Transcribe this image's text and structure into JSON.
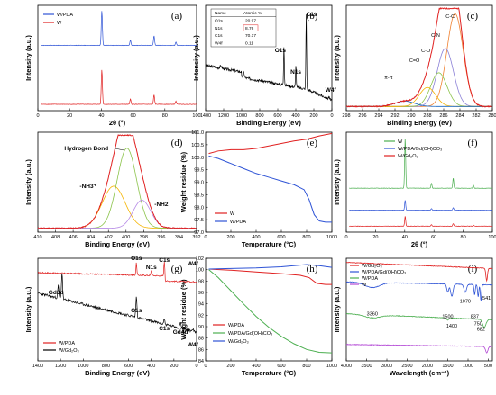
{
  "chart_data": [
    {
      "id": "a",
      "type": "line",
      "tag": "(a)",
      "xlabel": "2θ (°)",
      "ylabel": "Intensity (a.u.)",
      "xlim": [
        0,
        100
      ],
      "xticks": [
        0,
        20,
        40,
        60,
        80,
        100
      ],
      "yticks_hidden": true,
      "legend": {
        "placement": "top-left",
        "entries": [
          {
            "name": "W/PDA",
            "color": "#2f54d6"
          },
          {
            "name": "W",
            "color": "#e02020"
          }
        ]
      },
      "series": [
        {
          "name": "W/PDA",
          "color": "#2f54d6",
          "baseline": 0.62,
          "peaks": [
            [
              40.3,
              0.33
            ],
            [
              58.3,
              0.05
            ],
            [
              73.2,
              0.09
            ],
            [
              87.0,
              0.03
            ]
          ]
        },
        {
          "name": "W",
          "color": "#e02020",
          "baseline": 0.06,
          "peaks": [
            [
              40.3,
              0.33
            ],
            [
              58.3,
              0.05
            ],
            [
              73.2,
              0.09
            ],
            [
              87.0,
              0.03
            ]
          ]
        }
      ]
    },
    {
      "id": "b",
      "type": "line",
      "tag": "(b)",
      "xlabel": "Binding Energy (eV)",
      "ylabel": "Intensity (a.u.)",
      "xlim": [
        1400,
        0
      ],
      "xticks": [
        1400,
        1200,
        1000,
        800,
        600,
        400,
        200,
        0
      ],
      "yticks_hidden": true,
      "table": {
        "headers": [
          "Name",
          "Atomic %"
        ],
        "rows": [
          [
            "O1s",
            "20.97"
          ],
          [
            "N1s",
            "8.76"
          ],
          [
            "C1s",
            "70.17"
          ],
          [
            "W4f",
            "0.11"
          ]
        ],
        "highlight_row": 1
      },
      "peak_labels": [
        {
          "text": "O1s",
          "x": 531
        },
        {
          "text": "N1s",
          "x": 399
        },
        {
          "text": "C1s",
          "x": 284.6
        },
        {
          "text": "W4f",
          "x": 33
        }
      ],
      "color": "#000000"
    },
    {
      "id": "c",
      "type": "line",
      "tag": "(c)",
      "xlabel": "Binding Energy (eV)",
      "ylabel": "Intensity (a.u.)",
      "xlim": [
        298,
        280
      ],
      "xticks": [
        298,
        296,
        294,
        292,
        290,
        288,
        286,
        284,
        282,
        280
      ],
      "yticks_hidden": true,
      "components": [
        {
          "label": "C-C",
          "center": 284.6,
          "height": 0.88,
          "width": 1.0,
          "color": "#f08030"
        },
        {
          "label": "C-N",
          "center": 285.8,
          "height": 0.55,
          "width": 1.0,
          "color": "#8a7fd6"
        },
        {
          "label": "C-O",
          "center": 286.6,
          "height": 0.32,
          "width": 1.0,
          "color": "#8bc34a"
        },
        {
          "label": "C=O",
          "center": 288.0,
          "height": 0.18,
          "width": 1.0,
          "color": "#f5b400"
        },
        {
          "label": "π-π",
          "center": 290.8,
          "height": 0.05,
          "width": 1.2,
          "color": "#1565c0"
        }
      ],
      "envelope_color": "#e02020"
    },
    {
      "id": "d",
      "type": "line",
      "tag": "(d)",
      "xlabel": "Binding Energy (eV)",
      "ylabel": "Intensity (a.u.)",
      "xlim": [
        410,
        392
      ],
      "xticks": [
        410,
        408,
        406,
        404,
        402,
        400,
        398,
        396,
        394,
        392
      ],
      "yticks_hidden": true,
      "annotations": [
        "Hydrogen Bond",
        "-NH3⁺",
        "-NH2"
      ],
      "components": [
        {
          "label": "-NH3⁺",
          "center": 401.4,
          "height": 0.42,
          "width": 1.3,
          "color": "#f5b400"
        },
        {
          "label": "Hydrogen Bond",
          "center": 399.9,
          "height": 0.8,
          "width": 1.1,
          "color": "#8bc34a"
        },
        {
          "label": "-NH2",
          "center": 398.2,
          "height": 0.28,
          "width": 1.0,
          "color": "#b68ae6"
        }
      ],
      "envelope_color": "#e02020"
    },
    {
      "id": "e",
      "type": "line",
      "tag": "(e)",
      "xlabel": "Temperature (°C)",
      "ylabel": "Weight residue (%)",
      "xlim": [
        0,
        1000
      ],
      "ylim": [
        97.0,
        101.0
      ],
      "xticks": [
        0,
        200,
        400,
        600,
        800,
        1000
      ],
      "yticks": [
        97.0,
        97.5,
        98.0,
        98.5,
        99.0,
        99.5,
        100.0,
        100.5,
        101.0
      ],
      "legend": {
        "placement": "bottom-left",
        "entries": [
          {
            "name": "W",
            "color": "#e02020"
          },
          {
            "name": "W/PDA",
            "color": "#2f54d6"
          }
        ]
      },
      "series": [
        {
          "name": "W",
          "color": "#e02020",
          "x": [
            25,
            100,
            200,
            300,
            400,
            500,
            600,
            700,
            800,
            900,
            1000
          ],
          "y": [
            100.15,
            100.25,
            100.3,
            100.3,
            100.35,
            100.45,
            100.55,
            100.65,
            100.72,
            100.85,
            100.95
          ]
        },
        {
          "name": "W/PDA",
          "color": "#2f54d6",
          "x": [
            25,
            100,
            200,
            300,
            400,
            500,
            600,
            700,
            780,
            820,
            860,
            900,
            950,
            1000
          ],
          "y": [
            100.05,
            99.95,
            99.75,
            99.55,
            99.35,
            99.2,
            99.05,
            98.9,
            98.7,
            98.3,
            97.7,
            97.45,
            97.4,
            97.4
          ]
        }
      ]
    },
    {
      "id": "f",
      "type": "line",
      "tag": "(f)",
      "xlabel": "2θ (°)",
      "ylabel": "Intensity (a.u.)",
      "xlim": [
        0,
        100
      ],
      "xticks": [
        0,
        20,
        40,
        60,
        80,
        100
      ],
      "yticks_hidden": true,
      "legend": {
        "placement": "top-right",
        "entries": [
          {
            "name": "W",
            "color": "#4caf50"
          },
          {
            "name": "W/PDA/Gd(OH)CO₃",
            "color": "#2f54d6"
          },
          {
            "name": "W/Gd₂O₃",
            "color": "#e02020"
          }
        ]
      },
      "series": [
        {
          "name": "W",
          "color": "#4caf50",
          "baseline": 0.44,
          "peaks": [
            [
              40.3,
              0.5
            ],
            [
              58.3,
              0.05
            ],
            [
              73.2,
              0.1
            ],
            [
              87.0,
              0.03
            ]
          ]
        },
        {
          "name": "W/PDA/Gd(OH)CO₃",
          "color": "#2f54d6",
          "baseline": 0.22,
          "peaks": [
            [
              40.3,
              0.1
            ],
            [
              58.3,
              0.015
            ],
            [
              73.2,
              0.025
            ]
          ]
        },
        {
          "name": "W/Gd₂O₃",
          "color": "#e02020",
          "baseline": 0.06,
          "peaks": [
            [
              40.3,
              0.1
            ],
            [
              58.3,
              0.015
            ],
            [
              73.2,
              0.025
            ],
            [
              87.0,
              0.01
            ]
          ]
        }
      ]
    },
    {
      "id": "g",
      "type": "line",
      "tag": "(g)",
      "xlabel": "Binding Energy (eV)",
      "ylabel": "Intensity (a.u.)",
      "xlim": [
        1400,
        0
      ],
      "xticks": [
        1400,
        1200,
        1000,
        800,
        600,
        400,
        200,
        0
      ],
      "yticks_hidden": true,
      "peak_labels_top": [
        "O1s",
        "N1s",
        "C1s",
        "W4f"
      ],
      "peak_labels_bottom": [
        "Gd3d",
        "O1s",
        "Gd4d",
        "C1s",
        "W4f"
      ],
      "legend": {
        "placement": "bottom-left",
        "entries": [
          {
            "name": "W/PDA",
            "color": "#e02020"
          },
          {
            "name": "W/Gd₂O₃",
            "color": "#000000"
          }
        ]
      }
    },
    {
      "id": "h",
      "type": "line",
      "tag": "(h)",
      "xlabel": "Temperature (°C)",
      "ylabel": "Weight residue (%)",
      "xlim": [
        0,
        1000
      ],
      "ylim": [
        84,
        102
      ],
      "xticks": [
        0,
        200,
        400,
        600,
        800,
        1000
      ],
      "yticks": [
        84,
        86,
        88,
        90,
        92,
        94,
        96,
        98,
        100,
        102
      ],
      "legend": {
        "placement": "bottom-left",
        "entries": [
          {
            "name": "W/PDA",
            "color": "#e02020"
          },
          {
            "name": "W/PDA/Gd(OH)CO₃",
            "color": "#4caf50"
          },
          {
            "name": "W/Gd₂O₃",
            "color": "#2f54d6"
          }
        ]
      },
      "series": [
        {
          "name": "W/PDA",
          "color": "#e02020",
          "x": [
            25,
            200,
            400,
            600,
            750,
            820,
            880,
            950,
            1000
          ],
          "y": [
            100.1,
            99.9,
            99.6,
            99.3,
            99.0,
            98.6,
            97.6,
            97.4,
            97.4
          ]
        },
        {
          "name": "W/PDA/Gd(OH)CO₃",
          "color": "#4caf50",
          "x": [
            25,
            100,
            200,
            300,
            400,
            500,
            600,
            700,
            800,
            900,
            1000
          ],
          "y": [
            100.0,
            98.6,
            96.3,
            94.0,
            91.8,
            89.9,
            88.3,
            87.0,
            86.0,
            85.5,
            85.4
          ]
        },
        {
          "name": "W/Gd₂O₃",
          "color": "#2f54d6",
          "x": [
            25,
            200,
            400,
            600,
            800,
            900,
            1000
          ],
          "y": [
            100.1,
            100.2,
            100.3,
            100.5,
            100.9,
            100.7,
            100.4
          ]
        }
      ]
    },
    {
      "id": "i",
      "type": "line",
      "tag": "(i)",
      "xlabel": "Wavelength (cm⁻¹)",
      "ylabel": "Intensity (a.u.)",
      "xlim": [
        4000,
        400
      ],
      "xticks": [
        4000,
        3500,
        3000,
        2500,
        2000,
        1500,
        1000,
        500
      ],
      "yticks_hidden": true,
      "annotations": [
        "541",
        "3360",
        "1500",
        "1400",
        "1070",
        "837",
        "750",
        "682"
      ],
      "legend": {
        "placement": "top-left",
        "entries": [
          {
            "name": "W/Gd₂O₃",
            "color": "#e02020"
          },
          {
            "name": "W/PDA/Gd(OH)CO₃",
            "color": "#2f54d6"
          },
          {
            "name": "W/PDA",
            "color": "#4caf50"
          },
          {
            "name": "W",
            "color": "#b44ad6"
          }
        ]
      }
    }
  ]
}
